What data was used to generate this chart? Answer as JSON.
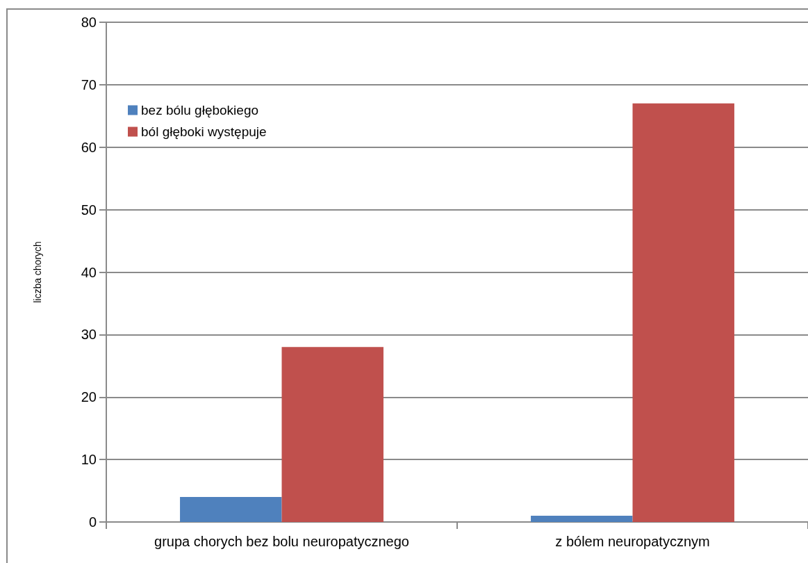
{
  "chart_data": {
    "type": "bar",
    "ylabel": "liczba chorych",
    "categories": [
      "grupa chorych bez bolu neuropatycznego",
      "z bólem neuropatycznym"
    ],
    "series": [
      {
        "name": "bez bólu głębokiego",
        "color": "#4f81bd",
        "values": [
          4,
          1
        ]
      },
      {
        "name": "ból głęboki występuje",
        "color": "#c0504d",
        "values": [
          28,
          67
        ]
      }
    ],
    "ylim": [
      0,
      80
    ],
    "yticks": [
      0,
      10,
      20,
      30,
      40,
      50,
      60,
      70,
      80
    ],
    "grid": "y",
    "legend": "top left"
  }
}
